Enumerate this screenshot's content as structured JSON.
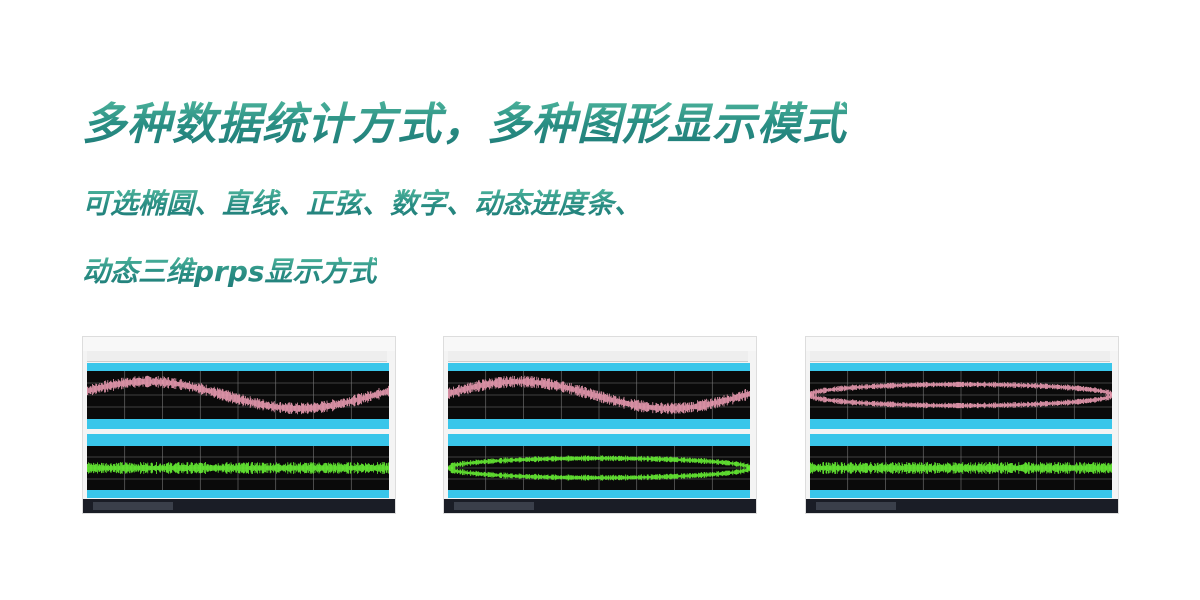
{
  "headline": "多种数据统计方式，多种图形显示模式",
  "subline_1": "可选椭圆、直线、正弦、数字、动态进度条、",
  "subline_2": "动态三维prps显示方式",
  "colors": {
    "text_accent": "#2f9a88",
    "panel_bar": "#39c6ea",
    "plot_bg": "#0a0a0a",
    "wave_top": "#e89ab0",
    "wave_bottom": "#66ee33"
  },
  "screenshots": [
    {
      "top_wave": "sine",
      "bottom_wave": "line"
    },
    {
      "top_wave": "sine",
      "bottom_wave": "ellipse"
    },
    {
      "top_wave": "ellipse",
      "bottom_wave": "line"
    }
  ]
}
